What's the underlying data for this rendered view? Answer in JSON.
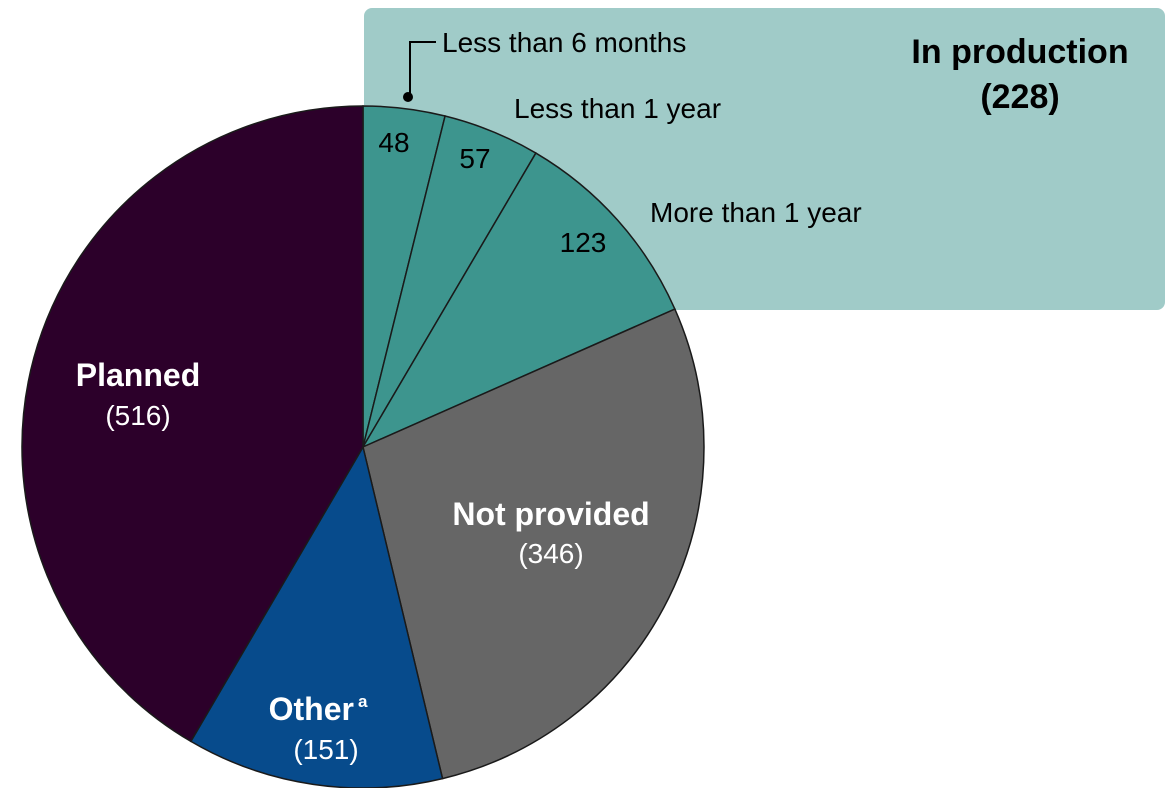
{
  "chart_data": {
    "type": "pie",
    "title": "",
    "slices": [
      {
        "label": "Less than 6 months",
        "value": 48,
        "color": "#3d958e"
      },
      {
        "label": "Less than 1 year",
        "value": 57,
        "color": "#3d958e"
      },
      {
        "label": "More than 1 year",
        "value": 123,
        "color": "#3d958e"
      },
      {
        "label": "Not provided",
        "value": 346,
        "color": "#666666"
      },
      {
        "label": "Other",
        "value": 151,
        "color": "#074b8c"
      },
      {
        "label": "Planned",
        "value": 516,
        "color": "#2c002a"
      }
    ],
    "group": {
      "label": "In production",
      "total": "(228)",
      "color": "#a0cbc8"
    },
    "labels": {
      "less6": {
        "name": "Less than 6 months",
        "value": "48"
      },
      "less1": {
        "name": "Less than 1 year",
        "value": "57"
      },
      "more1": {
        "name": "More than 1 year",
        "value": "123"
      },
      "notprovided": {
        "name": "Not provided",
        "value": "(346)"
      },
      "other": {
        "name": "Other",
        "superscript": "a",
        "value": "(151)"
      },
      "planned": {
        "name": "Planned",
        "value": "(516)"
      }
    }
  }
}
